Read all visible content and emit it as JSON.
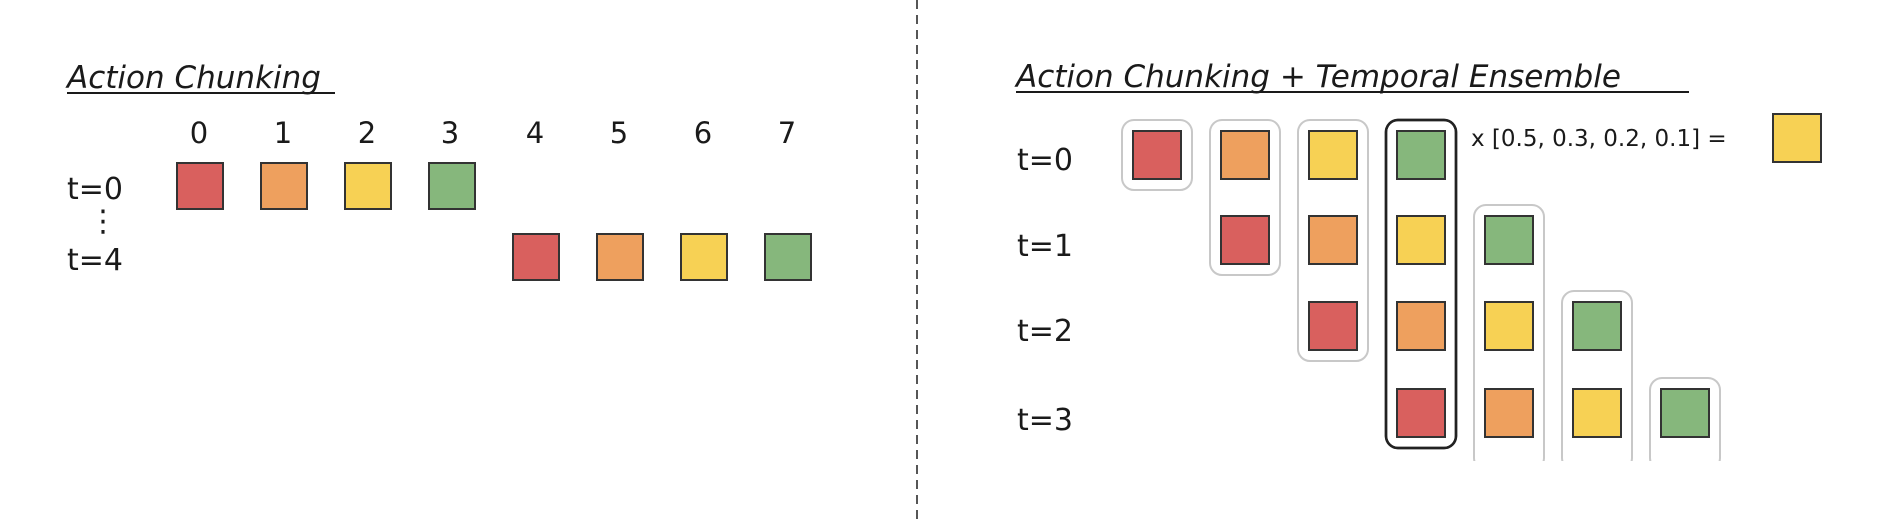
{
  "colors": {
    "red": "#d9605e",
    "orange": "#eea05e",
    "yellow": "#f7d154",
    "green": "#86b77c",
    "stroke": "#333333",
    "group_outline": "#c8c8c8",
    "highlight_outline": "#222222"
  },
  "left_panel": {
    "title": "Action Chunking",
    "indices": [
      "0",
      "1",
      "2",
      "3",
      "4",
      "5",
      "6",
      "7"
    ],
    "rows": [
      {
        "label": "t=0",
        "start_index": 0,
        "colors": [
          "red",
          "orange",
          "yellow",
          "green"
        ]
      },
      {
        "label": "t=4",
        "start_index": 4,
        "colors": [
          "red",
          "orange",
          "yellow",
          "green"
        ]
      }
    ],
    "ellipsis": "⋮"
  },
  "divider": {
    "style": "dashed"
  },
  "right_panel": {
    "title": "Action Chunking + Temporal Ensemble",
    "rows": [
      {
        "label": "t=0",
        "start_col": 0,
        "colors": [
          "red",
          "orange",
          "yellow",
          "green"
        ]
      },
      {
        "label": "t=1",
        "start_col": 1,
        "colors": [
          "red",
          "orange",
          "yellow",
          "green"
        ]
      },
      {
        "label": "t=2",
        "start_col": 2,
        "colors": [
          "red",
          "orange",
          "yellow",
          "green"
        ]
      },
      {
        "label": "t=3",
        "start_col": 3,
        "colors": [
          "red",
          "orange",
          "yellow",
          "green"
        ]
      }
    ],
    "highlight_column": 3,
    "weights_text": "x [0.5, 0.3, 0.2, 0.1] =",
    "result_color": "yellow"
  }
}
